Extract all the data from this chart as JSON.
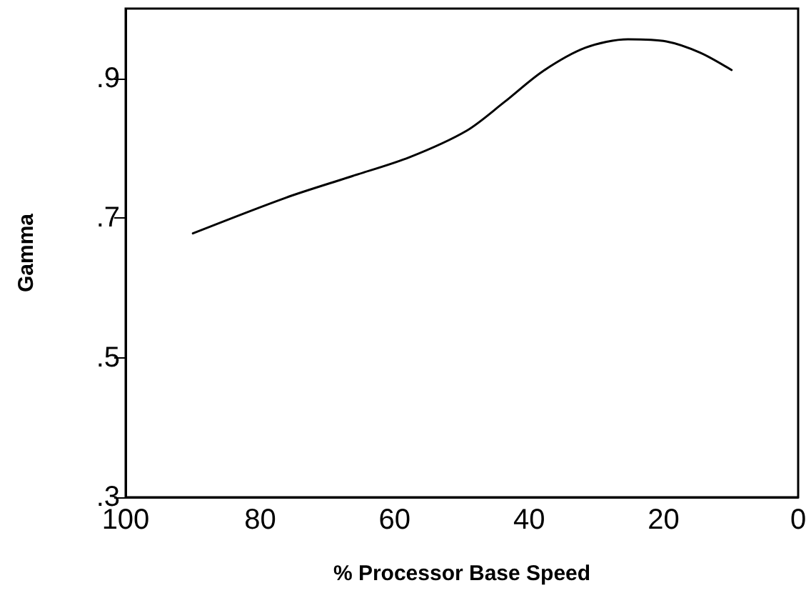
{
  "chart_data": {
    "type": "line",
    "xlabel": "% Processor Base Speed",
    "ylabel": "Gamma",
    "x": [
      90,
      76.2,
      66.3,
      57.8,
      49.3,
      43.7,
      38,
      31.6,
      25.3,
      19.6,
      14.6,
      9.9
    ],
    "series": [
      {
        "color": "#000000",
        "values": [
          0.678,
          0.729,
          0.76,
          0.787,
          0.825,
          0.866,
          0.91,
          0.944,
          0.956,
          0.953,
          0.937,
          0.912
        ]
      }
    ],
    "xlim": [
      100,
      0
    ],
    "xticks": [
      100,
      80,
      60,
      40,
      20,
      0
    ],
    "ylim": [
      0.3,
      1.0
    ],
    "yticks": [
      {
        "value": 0.3,
        "label": ".3"
      },
      {
        "value": 0.5,
        "label": ".5"
      },
      {
        "value": 0.7,
        "label": ".7"
      },
      {
        "value": 0.9,
        "label": ".9"
      }
    ],
    "grid": false,
    "marker": "none",
    "line_style": "solid"
  }
}
